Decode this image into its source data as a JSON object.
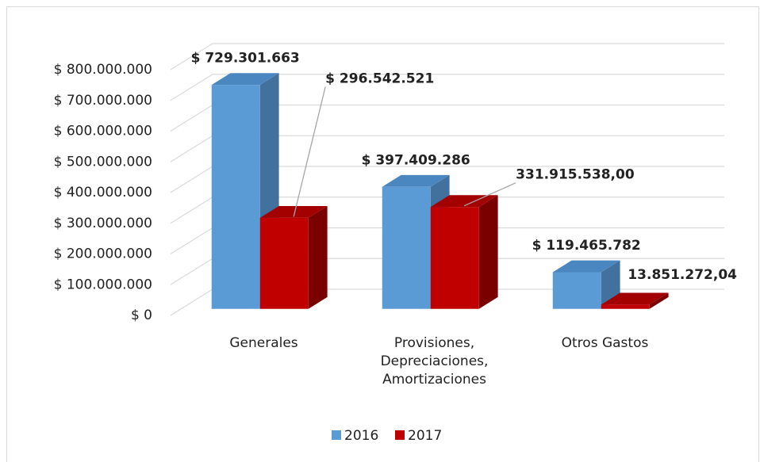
{
  "chart_data": {
    "type": "bar3d",
    "categories": [
      "Generales",
      "Provisiones, Depreciaciones, Amortizaciones",
      "Otros Gastos"
    ],
    "series": [
      {
        "name": "2016",
        "color": "#5b9bd5",
        "values": [
          729301663,
          397409286,
          119465782
        ],
        "value_labels": [
          "$ 729.301.663",
          "$ 397.409.286",
          "$ 119.465.782"
        ]
      },
      {
        "name": "2017",
        "color": "#c00000",
        "values": [
          296542521,
          331915538,
          13851272.04
        ],
        "value_labels": [
          "$ 296.542.521",
          "331.915.538,00",
          "13.851.272,04"
        ]
      }
    ],
    "ylim": [
      0,
      800000000
    ],
    "yticks": [
      {
        "value": 0,
        "label": "$ 0"
      },
      {
        "value": 100000000,
        "label": "$ 100.000.000"
      },
      {
        "value": 200000000,
        "label": "$ 200.000.000"
      },
      {
        "value": 300000000,
        "label": "$ 300.000.000"
      },
      {
        "value": 400000000,
        "label": "$ 400.000.000"
      },
      {
        "value": 500000000,
        "label": "$ 500.000.000"
      },
      {
        "value": 600000000,
        "label": "$ 600.000.000"
      },
      {
        "value": 700000000,
        "label": "$ 700.000.000"
      },
      {
        "value": 800000000,
        "label": "$ 800.000.000"
      }
    ],
    "grid": true,
    "legend": "bottom"
  }
}
